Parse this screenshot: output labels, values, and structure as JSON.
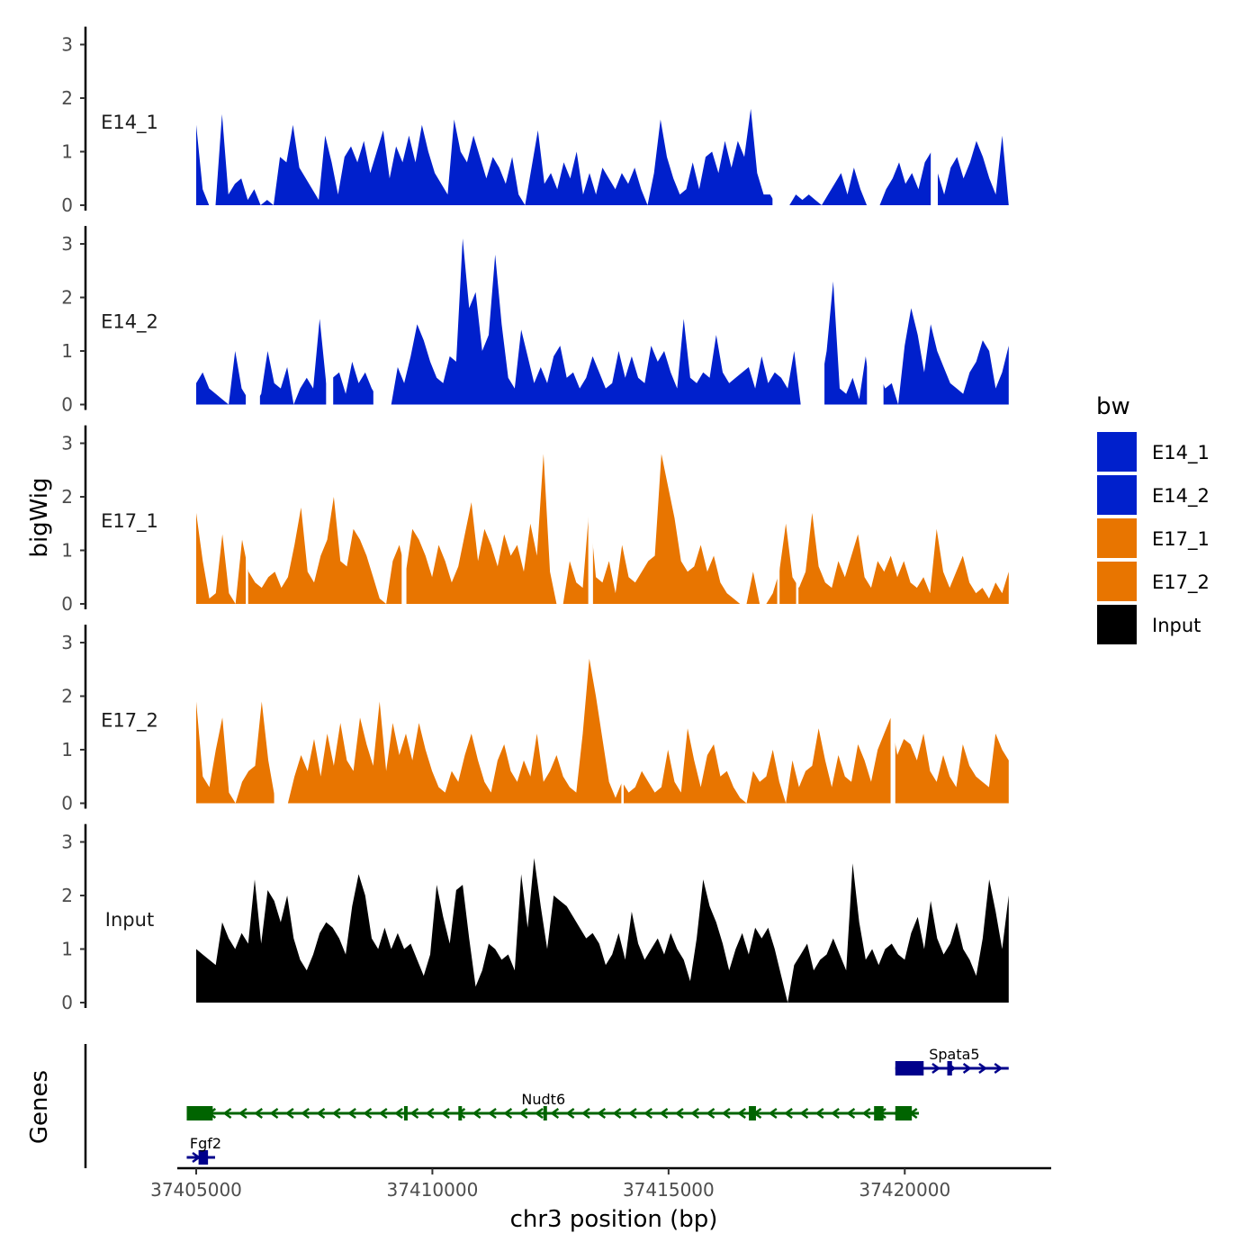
{
  "chart_data": {
    "type": "area",
    "ylabel": "bigWig",
    "xlabel": "chr3 position (bp)",
    "xlim": [
      37404600,
      37423100
    ],
    "xticks": [
      37405000,
      37410000,
      37415000,
      37420000
    ],
    "xtick_labels": [
      "37405000",
      "37410000",
      "37415000",
      "37420000"
    ],
    "ylim": [
      0,
      3.3
    ],
    "yticks": [
      0,
      1,
      2,
      3
    ],
    "ytick_labels": [
      "0",
      "1",
      "2",
      "3"
    ],
    "data_range": [
      37405000,
      37422200
    ],
    "tracks": [
      {
        "name": "E14_1",
        "color": "#0020CC",
        "values": [
          1.5,
          0.3,
          0.0,
          0.0,
          1.7,
          0.2,
          0.4,
          0.5,
          0.1,
          0.3,
          0.0,
          0.1,
          0.0,
          0.9,
          0.8,
          1.5,
          0.7,
          0.5,
          0.3,
          0.1,
          1.3,
          0.8,
          0.2,
          0.9,
          1.1,
          0.8,
          1.2,
          0.6,
          1.0,
          1.4,
          0.5,
          1.1,
          0.8,
          1.3,
          0.8,
          1.5,
          1.0,
          0.6,
          0.4,
          0.2,
          1.6,
          1.0,
          0.8,
          1.3,
          0.9,
          0.5,
          0.9,
          0.7,
          0.4,
          0.9,
          0.2,
          0.0,
          0.7,
          1.4,
          0.4,
          0.6,
          0.3,
          0.8,
          0.5,
          1.0,
          0.2,
          0.6,
          0.2,
          0.7,
          0.5,
          0.3,
          0.6,
          0.4,
          0.7,
          0.3,
          0.0,
          0.6,
          1.6,
          0.9,
          0.5,
          0.2,
          0.3,
          0.8,
          0.3,
          0.9,
          1.0,
          0.6,
          1.2,
          0.7,
          1.2,
          0.9,
          1.8,
          0.6,
          0.2,
          0.2,
          0.0,
          0.0,
          0.0,
          0.2,
          0.1,
          0.2,
          0.1,
          0.0,
          0.2,
          0.4,
          0.6,
          0.2,
          0.7,
          0.3,
          0.0,
          0.0,
          0.0,
          0.3,
          0.5,
          0.8,
          0.4,
          0.6,
          0.3,
          0.8,
          1.0,
          0.6,
          0.2,
          0.7,
          0.9,
          0.5,
          0.8,
          1.2,
          0.9,
          0.5,
          0.2,
          1.3,
          0.0
        ],
        "gaps": [
          [
            37417200,
            37417550
          ],
          [
            37420550,
            37420700
          ]
        ]
      },
      {
        "name": "E14_2",
        "color": "#0020CC",
        "values": [
          0.4,
          0.6,
          0.3,
          0.2,
          0.1,
          0.0,
          1.0,
          0.3,
          0.1,
          0.0,
          0.2,
          1.0,
          0.4,
          0.3,
          0.7,
          0.0,
          0.3,
          0.5,
          0.3,
          1.6,
          0.4,
          0.5,
          0.6,
          0.2,
          0.8,
          0.4,
          0.6,
          0.3,
          0.1,
          0.0,
          0.0,
          0.7,
          0.4,
          0.9,
          1.5,
          1.2,
          0.8,
          0.5,
          0.4,
          0.9,
          0.8,
          3.1,
          1.8,
          2.1,
          1.0,
          1.3,
          2.8,
          1.5,
          0.5,
          0.3,
          1.4,
          0.9,
          0.4,
          0.7,
          0.4,
          0.9,
          1.1,
          0.5,
          0.6,
          0.3,
          0.5,
          0.9,
          0.6,
          0.3,
          0.4,
          1.0,
          0.5,
          0.9,
          0.5,
          0.4,
          1.1,
          0.8,
          1.0,
          0.6,
          0.3,
          1.6,
          0.5,
          0.4,
          0.6,
          0.5,
          1.3,
          0.6,
          0.4,
          0.5,
          0.6,
          0.7,
          0.3,
          0.9,
          0.4,
          0.6,
          0.5,
          0.3,
          1.0,
          0.0,
          0.0,
          0.0,
          0.3,
          1.0,
          2.3,
          0.3,
          0.2,
          0.5,
          0.1,
          0.9,
          0.0,
          0.6,
          0.3,
          0.4,
          0.0,
          1.1,
          1.8,
          1.3,
          0.6,
          1.5,
          1.0,
          0.7,
          0.4,
          0.3,
          0.2,
          0.6,
          0.8,
          1.2,
          1.0,
          0.3,
          0.6,
          1.1
        ],
        "gaps": [
          [
            37406050,
            37406350
          ],
          [
            37407750,
            37407900
          ],
          [
            37408750,
            37409050
          ],
          [
            37417800,
            37418300
          ],
          [
            37419200,
            37419550
          ]
        ]
      },
      {
        "name": "E17_1",
        "color": "#E87500",
        "values": [
          1.7,
          0.8,
          0.1,
          0.2,
          1.3,
          0.2,
          0.0,
          1.2,
          0.6,
          0.4,
          0.3,
          0.5,
          0.6,
          0.3,
          0.5,
          1.1,
          1.8,
          0.6,
          0.4,
          0.9,
          1.2,
          2.0,
          0.8,
          0.7,
          1.4,
          1.2,
          0.9,
          0.5,
          0.1,
          0.0,
          0.8,
          1.1,
          0.6,
          1.4,
          1.2,
          0.9,
          0.5,
          1.1,
          0.8,
          0.4,
          0.7,
          1.3,
          1.9,
          0.8,
          1.4,
          1.1,
          0.7,
          1.3,
          0.9,
          1.1,
          0.6,
          1.5,
          0.9,
          2.8,
          0.6,
          0.0,
          0.0,
          0.8,
          0.4,
          0.3,
          1.8,
          0.5,
          0.4,
          0.8,
          0.2,
          1.1,
          0.5,
          0.4,
          0.6,
          0.8,
          0.9,
          2.8,
          2.2,
          1.6,
          0.8,
          0.6,
          0.7,
          1.1,
          0.6,
          0.9,
          0.4,
          0.2,
          0.1,
          0.0,
          0.0,
          0.6,
          0.0,
          0.0,
          0.2,
          0.6,
          1.5,
          0.5,
          0.3,
          0.6,
          1.7,
          0.7,
          0.4,
          0.3,
          0.8,
          0.5,
          0.9,
          1.3,
          0.5,
          0.3,
          0.8,
          0.6,
          0.9,
          0.5,
          0.8,
          0.4,
          0.3,
          0.5,
          0.2,
          1.4,
          0.6,
          0.3,
          0.6,
          0.9,
          0.4,
          0.2,
          0.3,
          0.1,
          0.4,
          0.2,
          0.6
        ],
        "gaps": [
          [
            37406050,
            37406100
          ],
          [
            37409350,
            37409450
          ],
          [
            37413300,
            37413400
          ],
          [
            37417300,
            37417350
          ],
          [
            37417700,
            37417750
          ]
        ]
      },
      {
        "name": "E17_2",
        "color": "#E87500",
        "values": [
          1.9,
          0.5,
          0.3,
          1.0,
          1.6,
          0.2,
          0.0,
          0.4,
          0.6,
          0.7,
          1.9,
          0.8,
          0.1,
          0.0,
          0.0,
          0.5,
          0.9,
          0.6,
          1.2,
          0.5,
          1.3,
          0.7,
          1.5,
          0.8,
          0.6,
          1.6,
          1.1,
          0.7,
          1.9,
          0.6,
          1.5,
          0.9,
          1.3,
          0.8,
          1.5,
          1.0,
          0.6,
          0.3,
          0.2,
          0.6,
          0.4,
          0.9,
          1.3,
          0.8,
          0.4,
          0.2,
          0.8,
          1.1,
          0.6,
          0.4,
          0.8,
          0.5,
          1.3,
          0.4,
          0.6,
          0.9,
          0.5,
          0.3,
          0.2,
          1.3,
          2.7,
          2.0,
          1.2,
          0.4,
          0.1,
          0.4,
          0.2,
          0.3,
          0.6,
          0.4,
          0.2,
          0.3,
          1.0,
          0.4,
          0.2,
          1.4,
          0.8,
          0.3,
          0.9,
          1.1,
          0.5,
          0.6,
          0.3,
          0.1,
          0.0,
          0.6,
          0.4,
          0.5,
          1.0,
          0.4,
          0.0,
          0.8,
          0.3,
          0.6,
          0.7,
          1.4,
          0.8,
          0.3,
          0.9,
          0.5,
          0.4,
          1.1,
          0.8,
          0.4,
          1.0,
          1.3,
          1.6,
          0.9,
          1.2,
          1.1,
          0.8,
          1.3,
          0.6,
          0.4,
          0.9,
          0.5,
          0.3,
          1.1,
          0.7,
          0.5,
          0.4,
          0.3,
          1.3,
          1.0,
          0.8
        ],
        "gaps": [
          [
            37406650,
            37406800
          ],
          [
            37414000,
            37414050
          ],
          [
            37419700,
            37419800
          ]
        ]
      },
      {
        "name": "Input",
        "color": "#000000",
        "values": [
          1.0,
          0.9,
          0.8,
          0.7,
          1.5,
          1.2,
          1.0,
          1.3,
          1.1,
          2.3,
          1.1,
          2.1,
          1.9,
          1.5,
          2.0,
          1.2,
          0.8,
          0.6,
          0.9,
          1.3,
          1.5,
          1.4,
          1.2,
          0.9,
          1.8,
          2.4,
          2.0,
          1.2,
          1.0,
          1.4,
          1.0,
          1.3,
          1.0,
          1.1,
          0.8,
          0.5,
          0.9,
          2.2,
          1.6,
          1.1,
          2.1,
          2.2,
          1.2,
          0.3,
          0.6,
          1.1,
          1.0,
          0.8,
          0.9,
          0.6,
          2.4,
          1.4,
          2.7,
          1.8,
          1.0,
          2.0,
          1.9,
          1.8,
          1.6,
          1.4,
          1.2,
          1.3,
          1.1,
          0.7,
          0.9,
          1.3,
          0.8,
          1.7,
          1.1,
          0.8,
          1.0,
          1.2,
          0.9,
          1.3,
          1.0,
          0.8,
          0.4,
          1.2,
          2.3,
          1.8,
          1.5,
          1.1,
          0.6,
          1.0,
          1.3,
          0.9,
          1.4,
          1.2,
          1.4,
          1.0,
          0.5,
          0.0,
          0.7,
          0.9,
          1.1,
          0.6,
          0.8,
          0.9,
          1.2,
          0.9,
          0.6,
          2.6,
          1.5,
          0.8,
          1.0,
          0.7,
          1.0,
          1.1,
          0.9,
          0.8,
          1.3,
          1.6,
          1.0,
          1.9,
          1.2,
          0.9,
          1.1,
          1.5,
          1.0,
          0.8,
          0.5,
          1.2,
          2.3,
          1.7,
          1.0,
          2.0
        ],
        "gaps": []
      }
    ],
    "genes": [
      {
        "name": "Spata5",
        "strand": "+",
        "color": "#00008B",
        "start": 37419800,
        "end": 37422200,
        "exons": [
          [
            37419800,
            37420400
          ],
          [
            37420900,
            37421000
          ]
        ]
      },
      {
        "name": "Nudt6",
        "strand": "-",
        "color": "#006400",
        "start": 37404800,
        "end": 37420300,
        "exons": [
          [
            37404800,
            37405350
          ],
          [
            37409400,
            37409450
          ],
          [
            37410550,
            37410600
          ],
          [
            37412350,
            37412400
          ],
          [
            37416700,
            37416850
          ],
          [
            37419350,
            37419550
          ],
          [
            37419800,
            37420150
          ]
        ]
      },
      {
        "name": "Fgf2",
        "strand": "+",
        "color": "#00008B",
        "start": 37404800,
        "end": 37405400,
        "exons": [
          [
            37405050,
            37405250
          ]
        ]
      }
    ],
    "genes_label": "Genes",
    "legend": {
      "title": "bw",
      "items": [
        {
          "label": "E14_1",
          "color": "#0020CC"
        },
        {
          "label": "E14_2",
          "color": "#0020CC"
        },
        {
          "label": "E17_1",
          "color": "#E87500"
        },
        {
          "label": "E17_2",
          "color": "#E87500"
        },
        {
          "label": "Input",
          "color": "#000000"
        }
      ]
    }
  }
}
